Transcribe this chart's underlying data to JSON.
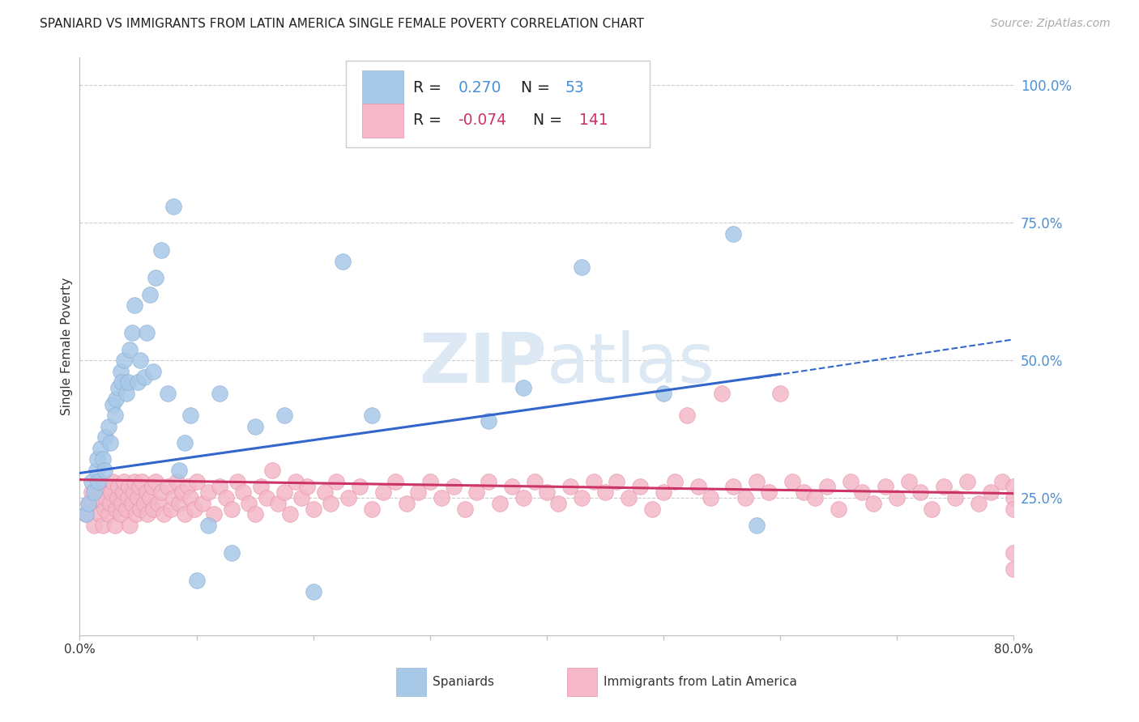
{
  "title": "SPANIARD VS IMMIGRANTS FROM LATIN AMERICA SINGLE FEMALE POVERTY CORRELATION CHART",
  "source": "Source: ZipAtlas.com",
  "ylabel": "Single Female Poverty",
  "legend_labels": [
    "Spaniards",
    "Immigrants from Latin America"
  ],
  "legend_R": [
    "0.270",
    "-0.074"
  ],
  "legend_N": [
    "53",
    "141"
  ],
  "blue_color": "#a8c8e8",
  "pink_color": "#f4b8c8",
  "blue_line_color": "#3366cc",
  "pink_line_color": "#cc3366",
  "right_axis_color": "#4a90d9",
  "legend_text_color": "#222222",
  "legend_val_color_blue": "#4a90d9",
  "legend_val_color_pink": "#cc3366",
  "watermark_color": "#dce8f4",
  "xlim": [
    0.0,
    0.8
  ],
  "ylim": [
    0.0,
    1.05
  ],
  "blue_x": [
    0.005,
    0.007,
    0.01,
    0.012,
    0.014,
    0.015,
    0.016,
    0.018,
    0.02,
    0.021,
    0.022,
    0.025,
    0.026,
    0.028,
    0.03,
    0.031,
    0.033,
    0.035,
    0.036,
    0.038,
    0.04,
    0.041,
    0.043,
    0.045,
    0.047,
    0.05,
    0.052,
    0.055,
    0.057,
    0.06,
    0.063,
    0.065,
    0.07,
    0.075,
    0.08,
    0.085,
    0.09,
    0.095,
    0.1,
    0.11,
    0.12,
    0.13,
    0.15,
    0.175,
    0.2,
    0.225,
    0.25,
    0.35,
    0.38,
    0.43,
    0.5,
    0.56,
    0.58
  ],
  "blue_y": [
    0.22,
    0.24,
    0.28,
    0.26,
    0.3,
    0.32,
    0.28,
    0.34,
    0.32,
    0.3,
    0.36,
    0.38,
    0.35,
    0.42,
    0.4,
    0.43,
    0.45,
    0.48,
    0.46,
    0.5,
    0.44,
    0.46,
    0.52,
    0.55,
    0.6,
    0.46,
    0.5,
    0.47,
    0.55,
    0.62,
    0.48,
    0.65,
    0.7,
    0.44,
    0.78,
    0.3,
    0.35,
    0.4,
    0.1,
    0.2,
    0.44,
    0.15,
    0.38,
    0.4,
    0.08,
    0.68,
    0.4,
    0.39,
    0.45,
    0.67,
    0.44,
    0.73,
    0.2
  ],
  "pink_x": [
    0.005,
    0.008,
    0.01,
    0.012,
    0.015,
    0.017,
    0.018,
    0.02,
    0.021,
    0.022,
    0.023,
    0.025,
    0.026,
    0.027,
    0.028,
    0.03,
    0.031,
    0.032,
    0.033,
    0.035,
    0.036,
    0.037,
    0.038,
    0.04,
    0.041,
    0.042,
    0.043,
    0.045,
    0.046,
    0.047,
    0.048,
    0.05,
    0.051,
    0.052,
    0.053,
    0.055,
    0.057,
    0.058,
    0.06,
    0.062,
    0.063,
    0.065,
    0.067,
    0.07,
    0.072,
    0.075,
    0.078,
    0.08,
    0.083,
    0.085,
    0.088,
    0.09,
    0.093,
    0.095,
    0.098,
    0.1,
    0.105,
    0.11,
    0.115,
    0.12,
    0.125,
    0.13,
    0.135,
    0.14,
    0.145,
    0.15,
    0.155,
    0.16,
    0.165,
    0.17,
    0.175,
    0.18,
    0.185,
    0.19,
    0.195,
    0.2,
    0.21,
    0.215,
    0.22,
    0.23,
    0.24,
    0.25,
    0.26,
    0.27,
    0.28,
    0.29,
    0.3,
    0.31,
    0.32,
    0.33,
    0.34,
    0.35,
    0.36,
    0.37,
    0.38,
    0.39,
    0.4,
    0.41,
    0.42,
    0.43,
    0.44,
    0.45,
    0.46,
    0.47,
    0.48,
    0.49,
    0.5,
    0.51,
    0.52,
    0.53,
    0.54,
    0.55,
    0.56,
    0.57,
    0.58,
    0.59,
    0.6,
    0.61,
    0.62,
    0.63,
    0.64,
    0.65,
    0.66,
    0.67,
    0.68,
    0.69,
    0.7,
    0.71,
    0.72,
    0.73,
    0.74,
    0.75,
    0.76,
    0.77,
    0.78,
    0.79,
    0.8,
    0.8,
    0.8,
    0.8,
    0.8
  ],
  "pink_y": [
    0.22,
    0.24,
    0.26,
    0.2,
    0.25,
    0.22,
    0.28,
    0.2,
    0.23,
    0.25,
    0.27,
    0.22,
    0.24,
    0.26,
    0.28,
    0.2,
    0.23,
    0.25,
    0.27,
    0.22,
    0.24,
    0.26,
    0.28,
    0.23,
    0.25,
    0.27,
    0.2,
    0.24,
    0.26,
    0.28,
    0.22,
    0.25,
    0.27,
    0.23,
    0.28,
    0.24,
    0.26,
    0.22,
    0.25,
    0.27,
    0.23,
    0.28,
    0.24,
    0.26,
    0.22,
    0.27,
    0.23,
    0.25,
    0.28,
    0.24,
    0.26,
    0.22,
    0.27,
    0.25,
    0.23,
    0.28,
    0.24,
    0.26,
    0.22,
    0.27,
    0.25,
    0.23,
    0.28,
    0.26,
    0.24,
    0.22,
    0.27,
    0.25,
    0.3,
    0.24,
    0.26,
    0.22,
    0.28,
    0.25,
    0.27,
    0.23,
    0.26,
    0.24,
    0.28,
    0.25,
    0.27,
    0.23,
    0.26,
    0.28,
    0.24,
    0.26,
    0.28,
    0.25,
    0.27,
    0.23,
    0.26,
    0.28,
    0.24,
    0.27,
    0.25,
    0.28,
    0.26,
    0.24,
    0.27,
    0.25,
    0.28,
    0.26,
    0.28,
    0.25,
    0.27,
    0.23,
    0.26,
    0.28,
    0.4,
    0.27,
    0.25,
    0.44,
    0.27,
    0.25,
    0.28,
    0.26,
    0.44,
    0.28,
    0.26,
    0.25,
    0.27,
    0.23,
    0.28,
    0.26,
    0.24,
    0.27,
    0.25,
    0.28,
    0.26,
    0.23,
    0.27,
    0.25,
    0.28,
    0.24,
    0.26,
    0.28,
    0.25,
    0.23,
    0.27,
    0.15,
    0.12
  ]
}
